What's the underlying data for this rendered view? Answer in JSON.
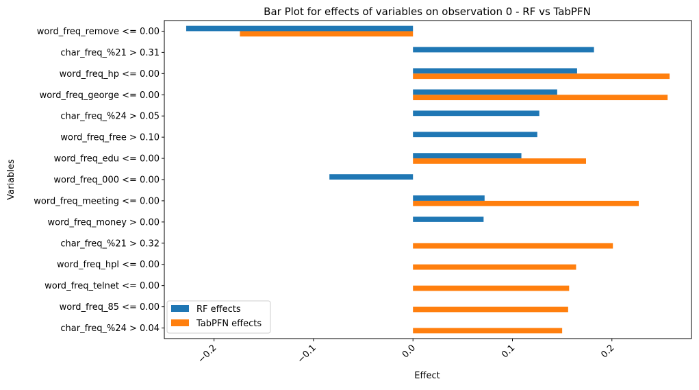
{
  "chart_data": {
    "type": "bar",
    "orientation": "horizontal",
    "title": "Bar Plot for effects of variables on observation 0 - RF vs TabPFN",
    "xlabel": "Effect",
    "ylabel": "Variables",
    "xlim": [
      -0.25,
      0.28
    ],
    "xticks": [
      -0.2,
      -0.1,
      0.0,
      0.1,
      0.2
    ],
    "xtick_labels": [
      "−0.2",
      "−0.1",
      "0.0",
      "0.1",
      "0.2"
    ],
    "xtick_rotation_deg": 45,
    "grid": false,
    "legend_position": "lower-left",
    "categories": [
      "word_freq_remove <= 0.00",
      "char_freq_%21 > 0.31",
      "word_freq_hp <= 0.00",
      "word_freq_george <= 0.00",
      "char_freq_%24 > 0.05",
      "word_freq_free > 0.10",
      "word_freq_edu <= 0.00",
      "word_freq_000 <= 0.00",
      "word_freq_meeting <= 0.00",
      "word_freq_money > 0.00",
      "char_freq_%21 > 0.32",
      "word_freq_hpl <= 0.00",
      "word_freq_telnet <= 0.00",
      "word_freq_85 <= 0.00",
      "char_freq_%24 > 0.04"
    ],
    "series": [
      {
        "name": "RF effects",
        "color": "#1f77b4",
        "values": [
          -0.228,
          0.182,
          0.165,
          0.145,
          0.127,
          0.125,
          0.109,
          -0.084,
          0.072,
          0.071,
          0,
          0,
          0,
          0,
          0
        ]
      },
      {
        "name": "TabPFN effects",
        "color": "#ff7f0e",
        "values": [
          -0.174,
          0,
          0.258,
          0.256,
          0,
          0,
          0.174,
          0,
          0.227,
          0,
          0.201,
          0.164,
          0.157,
          0.156,
          0.15
        ]
      }
    ]
  }
}
